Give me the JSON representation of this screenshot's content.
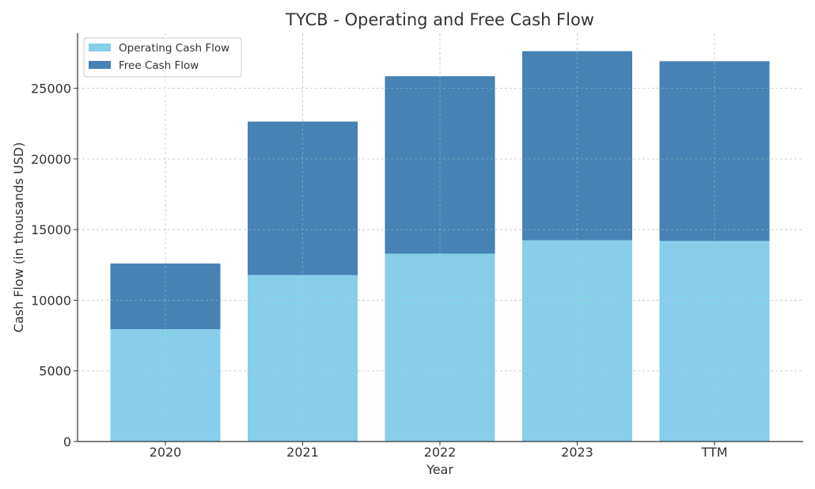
{
  "chart_data": {
    "type": "bar",
    "stacked": true,
    "title": "TYCB - Operating and Free Cash Flow",
    "xlabel": "Year",
    "ylabel": "Cash Flow (in thousands USD)",
    "categories": [
      "2020",
      "2021",
      "2022",
      "2023",
      "TTM"
    ],
    "series": [
      {
        "name": "Operating Cash Flow",
        "color": "#87ceeb",
        "values": [
          7950,
          11780,
          13300,
          14250,
          14200
        ]
      },
      {
        "name": "Free Cash Flow",
        "color": "#4682b4",
        "values": [
          4650,
          10870,
          12560,
          13380,
          12720
        ]
      }
    ],
    "ylim": [
      0,
      28900
    ],
    "yticks": [
      0,
      5000,
      10000,
      15000,
      20000,
      25000
    ],
    "ytick_labels": [
      "0",
      "5000",
      "10000",
      "15000",
      "20000",
      "25000"
    ],
    "grid": true,
    "legend_position": "upper-left"
  }
}
